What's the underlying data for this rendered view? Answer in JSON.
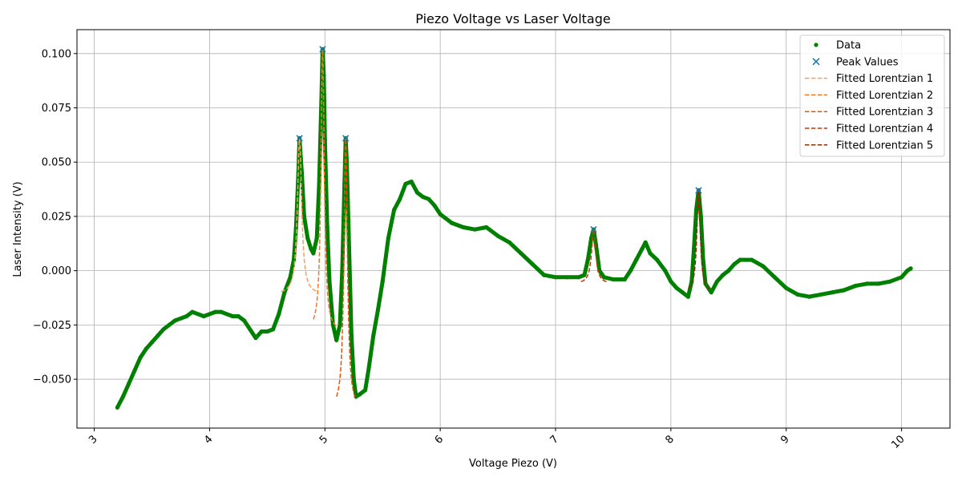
{
  "chart_data": {
    "type": "scatter",
    "title": "Piezo Voltage vs Laser Voltage",
    "xlabel": "Voltage Piezo (V)",
    "ylabel": "Laser Intensity (V)",
    "xlim": [
      2.85,
      10.42
    ],
    "ylim": [
      -0.0725,
      0.111
    ],
    "xticks": [
      3,
      4,
      5,
      6,
      7,
      8,
      9,
      10
    ],
    "yticks": [
      -0.05,
      -0.025,
      0.0,
      0.025,
      0.05,
      0.075,
      0.1
    ],
    "ytick_labels": [
      "−0.050",
      "−0.025",
      "0.000",
      "0.025",
      "0.050",
      "0.075",
      "0.100"
    ],
    "grid": true,
    "legend_position": "top-right",
    "colors": {
      "data": "#008000",
      "peaks": "#1f77b4",
      "fit1": "#f5a05a",
      "fit2": "#f07828",
      "fit3": "#e0540e",
      "fit4": "#c23a08",
      "fit5": "#8c2d04"
    },
    "data_trace": [
      [
        3.2,
        -0.063
      ],
      [
        3.25,
        -0.058
      ],
      [
        3.3,
        -0.052
      ],
      [
        3.35,
        -0.046
      ],
      [
        3.4,
        -0.04
      ],
      [
        3.45,
        -0.036
      ],
      [
        3.5,
        -0.033
      ],
      [
        3.55,
        -0.03
      ],
      [
        3.6,
        -0.027
      ],
      [
        3.65,
        -0.025
      ],
      [
        3.7,
        -0.023
      ],
      [
        3.75,
        -0.022
      ],
      [
        3.8,
        -0.021
      ],
      [
        3.85,
        -0.019
      ],
      [
        3.9,
        -0.02
      ],
      [
        3.95,
        -0.021
      ],
      [
        4.0,
        -0.02
      ],
      [
        4.05,
        -0.019
      ],
      [
        4.1,
        -0.019
      ],
      [
        4.15,
        -0.02
      ],
      [
        4.2,
        -0.021
      ],
      [
        4.25,
        -0.021
      ],
      [
        4.3,
        -0.023
      ],
      [
        4.35,
        -0.027
      ],
      [
        4.4,
        -0.031
      ],
      [
        4.45,
        -0.028
      ],
      [
        4.5,
        -0.028
      ],
      [
        4.55,
        -0.027
      ],
      [
        4.6,
        -0.02
      ],
      [
        4.65,
        -0.01
      ],
      [
        4.7,
        -0.003
      ],
      [
        4.73,
        0.005
      ],
      [
        4.75,
        0.02
      ],
      [
        4.77,
        0.045
      ],
      [
        4.78,
        0.061
      ],
      [
        4.8,
        0.045
      ],
      [
        4.82,
        0.025
      ],
      [
        4.85,
        0.015
      ],
      [
        4.88,
        0.01
      ],
      [
        4.9,
        0.008
      ],
      [
        4.93,
        0.015
      ],
      [
        4.95,
        0.04
      ],
      [
        4.97,
        0.08
      ],
      [
        4.98,
        0.102
      ],
      [
        4.99,
        0.09
      ],
      [
        5.0,
        0.06
      ],
      [
        5.02,
        0.02
      ],
      [
        5.04,
        -0.005
      ],
      [
        5.07,
        -0.025
      ],
      [
        5.1,
        -0.032
      ],
      [
        5.13,
        -0.025
      ],
      [
        5.15,
        0.0
      ],
      [
        5.17,
        0.04
      ],
      [
        5.18,
        0.061
      ],
      [
        5.19,
        0.05
      ],
      [
        5.21,
        0.01
      ],
      [
        5.23,
        -0.03
      ],
      [
        5.25,
        -0.05
      ],
      [
        5.27,
        -0.058
      ],
      [
        5.3,
        -0.057
      ],
      [
        5.35,
        -0.055
      ],
      [
        5.38,
        -0.045
      ],
      [
        5.42,
        -0.03
      ],
      [
        5.46,
        -0.018
      ],
      [
        5.5,
        -0.005
      ],
      [
        5.55,
        0.015
      ],
      [
        5.6,
        0.028
      ],
      [
        5.65,
        0.033
      ],
      [
        5.7,
        0.04
      ],
      [
        5.75,
        0.041
      ],
      [
        5.8,
        0.036
      ],
      [
        5.85,
        0.034
      ],
      [
        5.9,
        0.033
      ],
      [
        5.95,
        0.03
      ],
      [
        6.0,
        0.026
      ],
      [
        6.1,
        0.022
      ],
      [
        6.2,
        0.02
      ],
      [
        6.3,
        0.019
      ],
      [
        6.4,
        0.02
      ],
      [
        6.5,
        0.016
      ],
      [
        6.6,
        0.013
      ],
      [
        6.7,
        0.008
      ],
      [
        6.8,
        0.003
      ],
      [
        6.9,
        -0.002
      ],
      [
        7.0,
        -0.003
      ],
      [
        7.1,
        -0.003
      ],
      [
        7.2,
        -0.003
      ],
      [
        7.25,
        -0.002
      ],
      [
        7.28,
        0.005
      ],
      [
        7.31,
        0.015
      ],
      [
        7.33,
        0.019
      ],
      [
        7.35,
        0.012
      ],
      [
        7.38,
        0.0
      ],
      [
        7.42,
        -0.003
      ],
      [
        7.5,
        -0.004
      ],
      [
        7.6,
        -0.004
      ],
      [
        7.65,
        0.0
      ],
      [
        7.7,
        0.005
      ],
      [
        7.75,
        0.01
      ],
      [
        7.78,
        0.013
      ],
      [
        7.82,
        0.008
      ],
      [
        7.88,
        0.005
      ],
      [
        7.95,
        0.0
      ],
      [
        8.0,
        -0.005
      ],
      [
        8.05,
        -0.008
      ],
      [
        8.1,
        -0.01
      ],
      [
        8.15,
        -0.012
      ],
      [
        8.18,
        -0.005
      ],
      [
        8.2,
        0.01
      ],
      [
        8.22,
        0.028
      ],
      [
        8.24,
        0.037
      ],
      [
        8.26,
        0.025
      ],
      [
        8.28,
        0.005
      ],
      [
        8.3,
        -0.006
      ],
      [
        8.35,
        -0.01
      ],
      [
        8.4,
        -0.005
      ],
      [
        8.45,
        -0.002
      ],
      [
        8.5,
        0.0
      ],
      [
        8.55,
        0.003
      ],
      [
        8.6,
        0.005
      ],
      [
        8.7,
        0.005
      ],
      [
        8.8,
        0.002
      ],
      [
        8.9,
        -0.003
      ],
      [
        9.0,
        -0.008
      ],
      [
        9.1,
        -0.011
      ],
      [
        9.2,
        -0.012
      ],
      [
        9.3,
        -0.011
      ],
      [
        9.4,
        -0.01
      ],
      [
        9.5,
        -0.009
      ],
      [
        9.6,
        -0.007
      ],
      [
        9.7,
        -0.006
      ],
      [
        9.8,
        -0.006
      ],
      [
        9.9,
        -0.005
      ],
      [
        10.0,
        -0.003
      ],
      [
        10.05,
        0.0
      ],
      [
        10.08,
        0.001
      ]
    ],
    "peaks": [
      {
        "x": 4.78,
        "y": 0.061
      },
      {
        "x": 4.98,
        "y": 0.102
      },
      {
        "x": 5.18,
        "y": 0.061
      },
      {
        "x": 7.33,
        "y": 0.019
      },
      {
        "x": 8.24,
        "y": 0.037
      }
    ],
    "fits": [
      {
        "name": "Fitted Lorentzian 1",
        "x0": 4.78,
        "amp": 0.072,
        "gamma": 0.022,
        "offset": -0.011,
        "xmin": 4.62,
        "xmax": 4.93,
        "color_key": "fit1"
      },
      {
        "name": "Fitted Lorentzian 2",
        "x0": 4.98,
        "amp": 0.13,
        "gamma": 0.017,
        "offset": -0.028,
        "xmin": 4.9,
        "xmax": 5.1,
        "color_key": "fit2"
      },
      {
        "name": "Fitted Lorentzian 3",
        "x0": 5.18,
        "amp": 0.125,
        "gamma": 0.018,
        "offset": -0.064,
        "xmin": 5.1,
        "xmax": 5.27,
        "color_key": "fit3"
      },
      {
        "name": "Fitted Lorentzian 4",
        "x0": 7.33,
        "amp": 0.025,
        "gamma": 0.022,
        "offset": -0.006,
        "xmin": 7.22,
        "xmax": 7.45,
        "color_key": "fit4"
      },
      {
        "name": "Fitted Lorentzian 5",
        "x0": 8.24,
        "amp": 0.047,
        "gamma": 0.018,
        "offset": -0.01,
        "xmin": 8.15,
        "xmax": 8.34,
        "color_key": "fit5"
      }
    ],
    "legend": [
      {
        "label": "Data",
        "kind": "dot",
        "color_key": "data"
      },
      {
        "label": "Peak Values",
        "kind": "x",
        "color_key": "peaks"
      },
      {
        "label": "Fitted Lorentzian 1",
        "kind": "dash",
        "color_key": "fit1"
      },
      {
        "label": "Fitted Lorentzian 2",
        "kind": "dash",
        "color_key": "fit2"
      },
      {
        "label": "Fitted Lorentzian 3",
        "kind": "dash",
        "color_key": "fit3"
      },
      {
        "label": "Fitted Lorentzian 4",
        "kind": "dash",
        "color_key": "fit4"
      },
      {
        "label": "Fitted Lorentzian 5",
        "kind": "dash",
        "color_key": "fit5"
      }
    ]
  }
}
